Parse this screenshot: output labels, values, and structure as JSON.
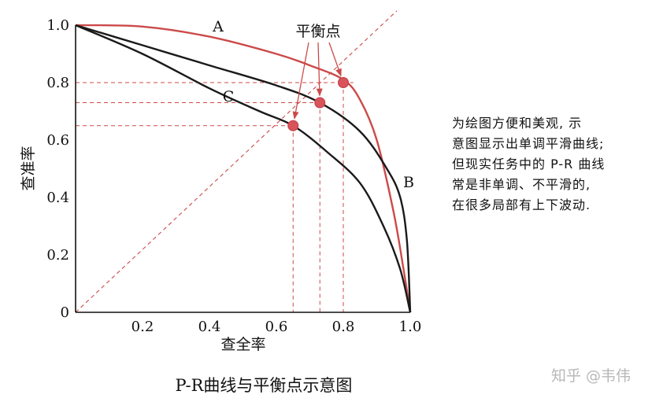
{
  "chart_data": {
    "type": "line",
    "title": "P-R曲线与平衡点示意图",
    "xlabel": "查全率",
    "ylabel": "查准率",
    "xlim": [
      0,
      1.0
    ],
    "ylim": [
      0,
      1.0
    ],
    "x_ticks": [
      "0.2",
      "0.4",
      "0.6",
      "0.8",
      "1.0"
    ],
    "y_ticks": [
      "0",
      "0.2",
      "0.4",
      "0.6",
      "0.8",
      "1.0"
    ],
    "grid": false,
    "series": [
      {
        "name": "A",
        "color": "#cc4a4a",
        "x": [
          0,
          0.2,
          0.4,
          0.6,
          0.7,
          0.8,
          0.85,
          0.9,
          0.95,
          0.98,
          1.0
        ],
        "y": [
          1.0,
          0.995,
          0.96,
          0.9,
          0.86,
          0.81,
          0.74,
          0.6,
          0.35,
          0.15,
          0
        ]
      },
      {
        "name": "B",
        "color": "#1a1a1a",
        "x": [
          0,
          0.2,
          0.4,
          0.6,
          0.73,
          0.85,
          0.93,
          0.97,
          0.99,
          1.0
        ],
        "y": [
          1.0,
          0.93,
          0.86,
          0.79,
          0.73,
          0.63,
          0.5,
          0.4,
          0.25,
          0
        ]
      },
      {
        "name": "C",
        "color": "#1a1a1a",
        "x": [
          0,
          0.2,
          0.4,
          0.55,
          0.65,
          0.75,
          0.85,
          0.92,
          0.97,
          1.0
        ],
        "y": [
          1.0,
          0.9,
          0.78,
          0.7,
          0.65,
          0.56,
          0.45,
          0.3,
          0.15,
          0
        ]
      }
    ],
    "diagonal": {
      "x": [
        0,
        1.0
      ],
      "y": [
        0,
        1.0
      ],
      "color": "#cc4a4a",
      "style": "dashed"
    },
    "break_even_points": [
      {
        "x": 0.65,
        "y": 0.65
      },
      {
        "x": 0.73,
        "y": 0.73
      },
      {
        "x": 0.8,
        "y": 0.8
      }
    ],
    "annotation": "平衡点",
    "curve_labels": [
      "A",
      "B",
      "C"
    ],
    "colors": {
      "red": "#cc4a4a",
      "black": "#1a1a1a"
    }
  },
  "side_note": [
    "为绘图方便和美观, 示",
    "意图显示出单调平滑曲线;",
    "但现实任务中的 P-R 曲线",
    "常是非单调、不平滑的,",
    "在很多局部有上下波动."
  ],
  "watermark": "知乎 @韦伟"
}
